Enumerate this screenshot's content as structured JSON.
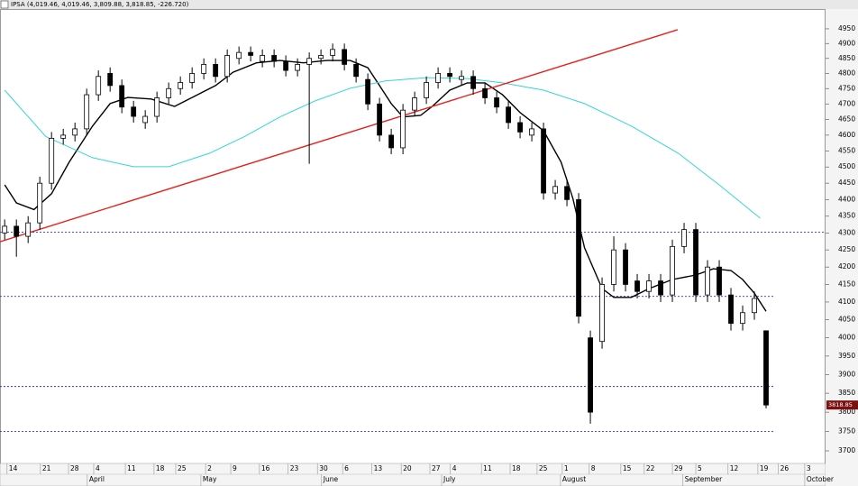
{
  "chart_data": {
    "type": "candlestick",
    "title": "IPSA (4,019.46, 4,019.46, 3,809.88, 3,818.85, -226.720)",
    "log_scale": true,
    "ylim": [
      3668,
      5018
    ],
    "yticks": [
      3700,
      3750,
      3800,
      3850,
      3900,
      3950,
      4000,
      4050,
      4100,
      4150,
      4200,
      4250,
      4300,
      4350,
      4400,
      4450,
      4500,
      4550,
      4600,
      4650,
      4700,
      4750,
      4800,
      4850,
      4900,
      4950
    ],
    "xlim": [
      -0.8,
      140
    ],
    "xticks": [
      {
        "value": 0.4,
        "label": "14"
      },
      {
        "value": 6.1,
        "label": "21"
      },
      {
        "value": 10.9,
        "label": "28"
      },
      {
        "value": 15.2,
        "label": "4"
      },
      {
        "value": 20.6,
        "label": "11"
      },
      {
        "value": 25.5,
        "label": "18"
      },
      {
        "value": 29.2,
        "label": "25"
      },
      {
        "value": 34.3,
        "label": "2"
      },
      {
        "value": 38.6,
        "label": "9"
      },
      {
        "value": 43.5,
        "label": "16"
      },
      {
        "value": 48.4,
        "label": "23"
      },
      {
        "value": 53.4,
        "label": "30"
      },
      {
        "value": 57.7,
        "label": "6"
      },
      {
        "value": 62.7,
        "label": "13"
      },
      {
        "value": 67.7,
        "label": "20"
      },
      {
        "value": 72.6,
        "label": "27"
      },
      {
        "value": 76.1,
        "label": "4"
      },
      {
        "value": 81.4,
        "label": "11"
      },
      {
        "value": 86.3,
        "label": "18"
      },
      {
        "value": 90.9,
        "label": "25"
      },
      {
        "value": 95.2,
        "label": "1"
      },
      {
        "value": 99.8,
        "label": "8"
      },
      {
        "value": 105.2,
        "label": "15"
      },
      {
        "value": 109.2,
        "label": "22"
      },
      {
        "value": 114,
        "label": "29"
      },
      {
        "value": 118,
        "label": "5"
      },
      {
        "value": 123.5,
        "label": "12"
      },
      {
        "value": 128.6,
        "label": "19"
      },
      {
        "value": 132.1,
        "label": "26"
      },
      {
        "value": 136.6,
        "label": "3"
      }
    ],
    "months": [
      {
        "value": 14.1,
        "label": "April"
      },
      {
        "value": 33.5,
        "label": "May"
      },
      {
        "value": 54.1,
        "label": "June"
      },
      {
        "value": 74.6,
        "label": "July"
      },
      {
        "value": 94.9,
        "label": "August"
      },
      {
        "value": 115.8,
        "label": "September"
      },
      {
        "value": 136.6,
        "label": "October"
      }
    ],
    "candles": {
      "up_color": "#ffffff",
      "down_color": "#000000",
      "x": [
        0,
        2,
        4,
        6,
        8,
        10,
        12,
        14,
        16,
        18,
        20,
        22,
        24,
        26,
        28,
        30,
        32,
        34,
        36,
        38,
        40,
        42,
        44,
        46,
        48,
        50,
        52,
        54,
        56,
        58,
        60,
        62,
        64,
        66,
        68,
        70,
        72,
        74,
        76,
        78,
        80,
        82,
        84,
        86,
        88,
        90,
        92,
        94,
        96,
        98,
        100,
        102,
        104,
        106,
        108,
        110,
        112,
        114,
        116,
        118,
        120,
        122,
        124,
        126,
        128,
        130
      ],
      "open": [
        4300,
        4320,
        4290,
        4330,
        4450,
        4590,
        4600,
        4620,
        4730,
        4800,
        4760,
        4690,
        4640,
        4660,
        4720,
        4750,
        4770,
        4800,
        4830,
        4790,
        4850,
        4870,
        4840,
        4860,
        4840,
        4810,
        4830,
        4850,
        4860,
        4880,
        4830,
        4780,
        4700,
        4600,
        4560,
        4680,
        4720,
        4770,
        4800,
        4780,
        4790,
        4750,
        4720,
        4690,
        4640,
        4600,
        4620,
        4420,
        4440,
        4400,
        4000,
        3990,
        4150,
        4250,
        4160,
        4130,
        4160,
        4120,
        4260,
        4310,
        4120,
        4200,
        4120,
        4040,
        4070,
        4019.46
      ],
      "high": [
        4340,
        4340,
        4350,
        4470,
        4610,
        4620,
        4640,
        4750,
        4810,
        4820,
        4780,
        4710,
        4680,
        4740,
        4770,
        4790,
        4820,
        4850,
        4850,
        4880,
        4890,
        4890,
        4880,
        4880,
        4860,
        4850,
        4870,
        4880,
        4900,
        4900,
        4850,
        4800,
        4720,
        4620,
        4700,
        4740,
        4790,
        4820,
        4820,
        4810,
        4810,
        4770,
        4740,
        4710,
        4660,
        4640,
        4640,
        4460,
        4460,
        4420,
        4020,
        4170,
        4290,
        4270,
        4180,
        4180,
        4180,
        4280,
        4330,
        4330,
        4220,
        4220,
        4140,
        4090,
        4130,
        4019.46
      ],
      "low": [
        4280,
        4230,
        4270,
        4310,
        4430,
        4570,
        4580,
        4600,
        4710,
        4740,
        4670,
        4640,
        4620,
        4640,
        4700,
        4730,
        4750,
        4780,
        4770,
        4770,
        4830,
        4840,
        4820,
        4820,
        4790,
        4790,
        4510,
        4830,
        4840,
        4810,
        4770,
        4680,
        4580,
        4540,
        4540,
        4660,
        4700,
        4750,
        4770,
        4760,
        4730,
        4700,
        4670,
        4620,
        4590,
        4580,
        4400,
        4400,
        4380,
        4040,
        3770,
        3970,
        4130,
        4130,
        4110,
        4110,
        4100,
        4100,
        4240,
        4100,
        4100,
        4100,
        4020,
        4020,
        4050,
        3809.88
      ],
      "close": [
        4320,
        4290,
        4330,
        4450,
        4590,
        4600,
        4620,
        4730,
        4790,
        4760,
        4690,
        4660,
        4660,
        4720,
        4750,
        4770,
        4800,
        4830,
        4790,
        4860,
        4870,
        4860,
        4860,
        4840,
        4810,
        4830,
        4850,
        4860,
        4880,
        4830,
        4790,
        4700,
        4600,
        4560,
        4680,
        4720,
        4770,
        4800,
        4790,
        4790,
        4750,
        4720,
        4690,
        4640,
        4610,
        4620,
        4420,
        4440,
        4400,
        4060,
        3800,
        4150,
        4250,
        4150,
        4130,
        4160,
        4120,
        4260,
        4310,
        4120,
        4200,
        4120,
        4040,
        4070,
        4110,
        3818.85
      ]
    },
    "lines": [
      {
        "color": "#000000",
        "x": [
          0,
          2,
          5,
          8,
          11,
          15,
          18,
          21,
          25,
          29,
          32,
          36,
          39,
          43,
          47,
          51,
          55,
          59,
          62,
          64,
          66,
          68,
          71,
          73,
          76,
          79,
          82,
          85,
          88,
          92,
          95,
          97,
          99,
          102,
          104,
          107,
          110,
          114,
          118,
          121,
          124,
          126,
          128,
          130
        ],
        "values": [
          4445,
          4390,
          4370,
          4418,
          4515,
          4629,
          4701,
          4721,
          4716,
          4692,
          4721,
          4760,
          4804,
          4835,
          4843,
          4835,
          4843,
          4843,
          4819,
          4760,
          4701,
          4658,
          4663,
          4692,
          4745,
          4769,
          4769,
          4730,
          4672,
          4614,
          4515,
          4404,
          4256,
          4138,
          4113,
          4113,
          4138,
          4164,
          4177,
          4195,
          4190,
          4164,
          4125,
          4074
        ]
      },
      {
        "color": "#33d6d6",
        "x": [
          0,
          7,
          15,
          22,
          28,
          35,
          41,
          47,
          53,
          59,
          65,
          72,
          79,
          85,
          92,
          99,
          107,
          115,
          122,
          129
        ],
        "values": [
          4745,
          4596,
          4529,
          4501,
          4501,
          4543,
          4596,
          4658,
          4710,
          4751,
          4775,
          4786,
          4783,
          4769,
          4745,
          4701,
          4629,
          4543,
          4445,
          4344
        ]
      },
      {
        "color": "#e8201c",
        "x": [
          -0.8,
          114.9
        ],
        "values": [
          4274,
          4947
        ]
      }
    ],
    "hlines": {
      "color": "#3333cc",
      "values": [
        4302,
        4116,
        3868,
        3750
      ]
    },
    "last_price_color": "#7a1010"
  }
}
